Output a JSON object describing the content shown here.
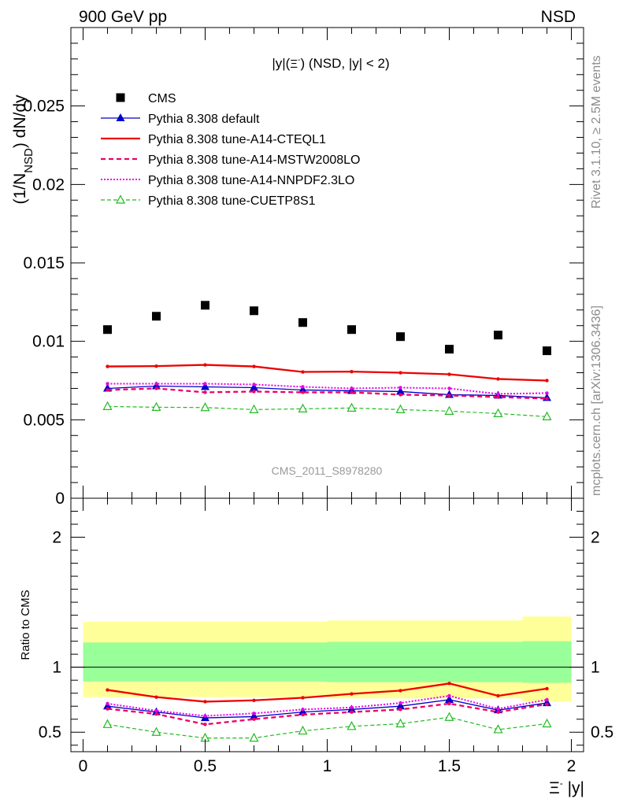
{
  "header": {
    "left": "900 GeV pp",
    "right": "NSD"
  },
  "side_labels": {
    "top": "Rivet 3.1.10, ≥ 2.5M events",
    "bottom": "mcplots.cern.ch [arXiv:1306.3436]"
  },
  "watermark": "CMS_2011_S8978280",
  "plot_title": {
    "pre": "|y|(",
    "xi": "Ξ",
    "minus": "-",
    "post": ") (NSD, |y| < 2)"
  },
  "axes": {
    "top_ylabel": {
      "pre": "(1/N",
      "sub": "NSD",
      "post": ") dN/dy"
    },
    "bottom_ylabel": "Ratio to CMS",
    "xlabel": {
      "xi": "Ξ",
      "minus": "-",
      "post": " |y|"
    },
    "top_yticks": [
      "0",
      "0.005",
      "0.01",
      "0.015",
      "0.02",
      "0.025"
    ],
    "bottom_yticks": [
      "0.5",
      "1",
      "2"
    ],
    "xticks": [
      "0",
      "0.5",
      "1",
      "1.5",
      "2"
    ]
  },
  "colors": {
    "CMS": "#000000",
    "default": "#0000cc",
    "CTEQL1": "#ee0000",
    "MSTW": "#ee0066",
    "NNPDF": "#e800e8",
    "CUETP8S1": "#22bb22",
    "band_inner": "#99ff99",
    "band_outer": "#ffff99"
  },
  "chart_data": [
    {
      "type": "scatter",
      "panel": "main",
      "xlim": [
        -0.05,
        2.05
      ],
      "ylim": [
        0,
        0.03
      ],
      "x": [
        0.1,
        0.3,
        0.5,
        0.7,
        0.9,
        1.1,
        1.3,
        1.5,
        1.7,
        1.9
      ],
      "series": [
        {
          "name": "CMS",
          "style": "marker-square",
          "values": [
            0.01075,
            0.0116,
            0.0123,
            0.01195,
            0.0112,
            0.01075,
            0.0103,
            0.0095,
            0.0104,
            0.0094
          ]
        },
        {
          "name": "Pythia 8.308 default",
          "style": "line-triangle",
          "values": [
            0.007,
            0.00715,
            0.0071,
            0.00705,
            0.0069,
            0.00685,
            0.0068,
            0.0066,
            0.00655,
            0.0064
          ]
        },
        {
          "name": "Pythia 8.308 tune-A14-CTEQL1",
          "style": "solid",
          "values": [
            0.0084,
            0.00842,
            0.0085,
            0.0084,
            0.00805,
            0.00807,
            0.008,
            0.0079,
            0.0076,
            0.0075
          ]
        },
        {
          "name": "Pythia 8.308 tune-A14-MSTW2008LO",
          "style": "dashed",
          "values": [
            0.0069,
            0.007,
            0.00675,
            0.0068,
            0.00675,
            0.00675,
            0.0066,
            0.00655,
            0.00645,
            0.00635
          ]
        },
        {
          "name": "Pythia 8.308 tune-A14-NNPDF2.3LO",
          "style": "dotted",
          "values": [
            0.0073,
            0.0073,
            0.0073,
            0.00725,
            0.0071,
            0.007,
            0.00705,
            0.007,
            0.00665,
            0.0067
          ]
        },
        {
          "name": "Pythia 8.308 tune-CUETP8S1",
          "style": "dashed-open-triangle",
          "values": [
            0.00585,
            0.0058,
            0.00578,
            0.00565,
            0.0057,
            0.00575,
            0.00565,
            0.00555,
            0.0054,
            0.0052
          ]
        }
      ]
    },
    {
      "type": "line",
      "panel": "ratio",
      "xlim": [
        -0.05,
        2.05
      ],
      "ylim": [
        0.35,
        2.3
      ],
      "x": [
        0.1,
        0.3,
        0.5,
        0.7,
        0.9,
        1.1,
        1.3,
        1.5,
        1.7,
        1.9
      ],
      "bands": {
        "edges": [
          0,
          0.2,
          0.4,
          0.6,
          0.8,
          1.0,
          1.2,
          1.4,
          1.6,
          1.8,
          2.0
        ],
        "inner_lo": [
          0.89,
          0.89,
          0.89,
          0.89,
          0.89,
          0.885,
          0.885,
          0.885,
          0.885,
          0.88
        ],
        "inner_hi": [
          1.19,
          1.19,
          1.19,
          1.19,
          1.19,
          1.195,
          1.195,
          1.195,
          1.195,
          1.2
        ],
        "outer_lo": [
          0.77,
          0.77,
          0.77,
          0.77,
          0.77,
          0.76,
          0.76,
          0.76,
          0.76,
          0.735
        ],
        "outer_hi": [
          1.35,
          1.35,
          1.35,
          1.35,
          1.35,
          1.36,
          1.36,
          1.36,
          1.36,
          1.39
        ]
      },
      "series": [
        {
          "name": "Pythia 8.308 default",
          "style": "line-triangle",
          "values": [
            0.7,
            0.655,
            0.61,
            0.62,
            0.655,
            0.675,
            0.7,
            0.75,
            0.67,
            0.725
          ]
        },
        {
          "name": "Pythia 8.308 tune-A14-CTEQL1",
          "style": "solid",
          "values": [
            0.825,
            0.77,
            0.735,
            0.745,
            0.765,
            0.795,
            0.82,
            0.875,
            0.78,
            0.835
          ]
        },
        {
          "name": "Pythia 8.308 tune-A14-MSTW2008LO",
          "style": "dashed",
          "values": [
            0.68,
            0.64,
            0.56,
            0.6,
            0.635,
            0.655,
            0.675,
            0.72,
            0.655,
            0.715
          ]
        },
        {
          "name": "Pythia 8.308 tune-A14-NNPDF2.3LO",
          "style": "dotted",
          "values": [
            0.72,
            0.665,
            0.625,
            0.645,
            0.675,
            0.69,
            0.725,
            0.78,
            0.68,
            0.75
          ]
        },
        {
          "name": "Pythia 8.308 tune-CUETP8S1",
          "style": "dashed-open-triangle",
          "values": [
            0.56,
            0.5,
            0.455,
            0.455,
            0.51,
            0.545,
            0.565,
            0.615,
            0.52,
            0.565
          ]
        }
      ]
    }
  ]
}
